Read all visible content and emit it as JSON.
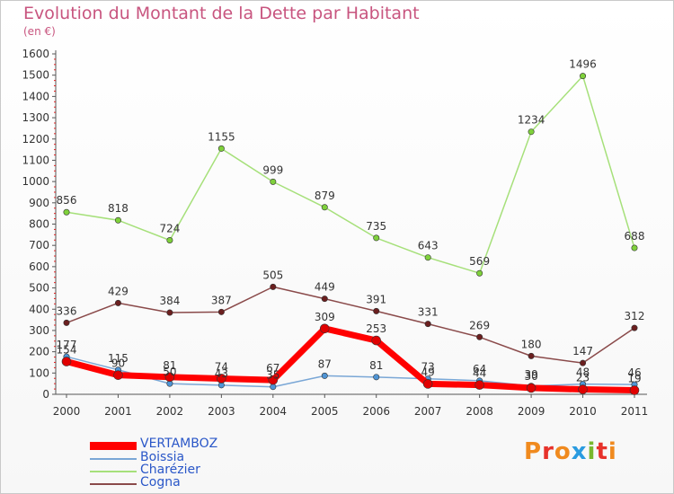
{
  "title": "Evolution du Montant de la Dette par Habitant",
  "subtitle": "(en €)",
  "brand": {
    "letters": [
      "P",
      "r",
      "o",
      "x",
      "i",
      "t",
      "i"
    ],
    "colors": [
      "#f08a1e",
      "#e7322b",
      "#f08a1e",
      "#2a9be0",
      "#79b72d",
      "#e7322b",
      "#f08a1e"
    ]
  },
  "chart_data": {
    "type": "line",
    "title": "Evolution du Montant de la Dette par Habitant",
    "subtitle": "(en €)",
    "x": [
      "2000",
      "2001",
      "2002",
      "2003",
      "2004",
      "2005",
      "2006",
      "2007",
      "2008",
      "2009",
      "2010",
      "2011"
    ],
    "ylim": [
      0,
      1600
    ],
    "yticks": [
      0,
      100,
      200,
      300,
      400,
      500,
      600,
      700,
      800,
      900,
      1000,
      1100,
      1200,
      1300,
      1400,
      1500,
      1600
    ],
    "grid": false,
    "legend": "bottom-left",
    "series": [
      {
        "name": "VERTAMBOZ",
        "color": "#ff0000",
        "marker": "#e00000",
        "width": 7,
        "values": [
          154,
          90,
          81,
          74,
          67,
          309,
          253,
          49,
          44,
          30,
          23,
          19
        ],
        "labels": [
          "154",
          "90",
          "81",
          "74",
          "67",
          "309",
          "253",
          "49",
          "44",
          "30",
          "23",
          "19"
        ]
      },
      {
        "name": "Boissia",
        "color": "#7aa7d6",
        "marker": "#4f94d4",
        "width": 1.5,
        "values": [
          177,
          115,
          50,
          43,
          35,
          87,
          81,
          73,
          64,
          39,
          48,
          46
        ],
        "labels": [
          "177",
          "115",
          "50",
          "43",
          "35",
          "87",
          "81",
          "73",
          "64",
          "39",
          "48",
          "46"
        ]
      },
      {
        "name": "Charézier",
        "color": "#a6e07a",
        "marker": "#7fd13b",
        "width": 1.5,
        "values": [
          856,
          818,
          724,
          1155,
          999,
          879,
          735,
          643,
          569,
          1234,
          1496,
          688
        ],
        "labels": [
          "856",
          "818",
          "724",
          "1155",
          "999",
          "879",
          "735",
          "643",
          "569",
          "1234",
          "1496",
          "688"
        ]
      },
      {
        "name": "Cogna",
        "color": "#8a4a4a",
        "marker": "#6b1f1f",
        "width": 1.5,
        "values": [
          336,
          429,
          384,
          387,
          505,
          449,
          391,
          331,
          269,
          180,
          147,
          312
        ],
        "labels": [
          "336",
          "429",
          "384",
          "387",
          "505",
          "449",
          "391",
          "331",
          "269",
          "180",
          "147",
          "312"
        ]
      }
    ]
  }
}
